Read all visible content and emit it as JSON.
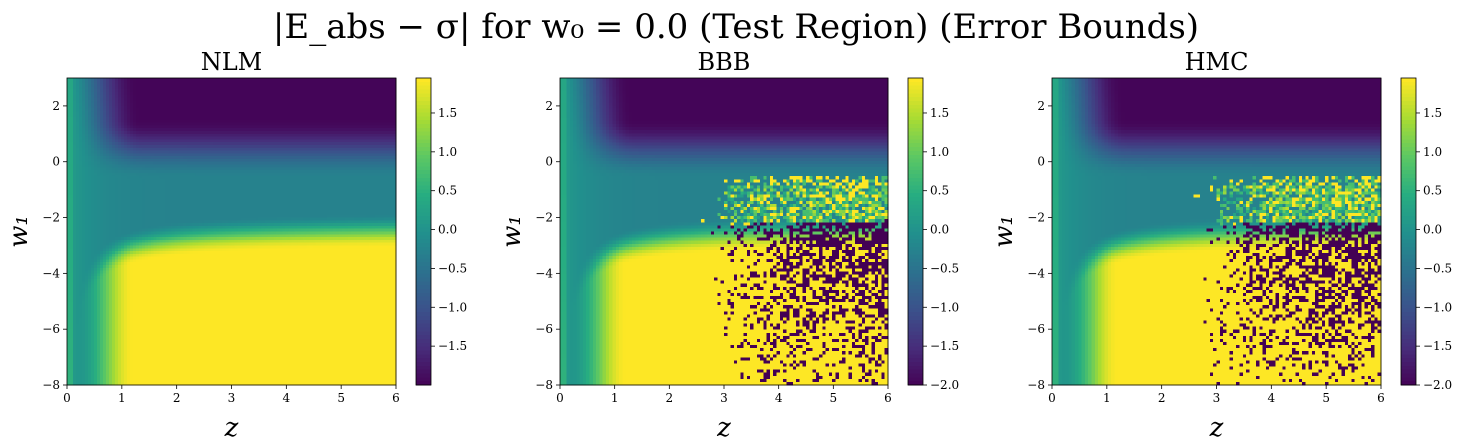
{
  "figure": {
    "suptitle": "|E_abs − σ| for w₀ = 0.0 (Test Region) (Error Bounds)"
  },
  "chart_data": [
    {
      "type": "heatmap",
      "title": "NLM",
      "xlabel": "z",
      "ylabel": "w₁",
      "xlim": [
        0,
        6
      ],
      "ylim": [
        -8,
        3
      ],
      "xticks": [
        0,
        1,
        2,
        3,
        4,
        5,
        6
      ],
      "yticks": [
        -8,
        -6,
        -4,
        -2,
        0,
        2
      ],
      "colormap": "viridis",
      "color_range": [
        -2.0,
        1.95
      ],
      "colorbar_ticks": [
        -1.5,
        -1.0,
        -0.5,
        0.0,
        0.5,
        1.0,
        1.5
      ],
      "noise": "none",
      "description_of_field": "smooth: high (yellow) for z>1 and w1<-2.5, low (purple) for w1>0, teal near z=0"
    },
    {
      "type": "heatmap",
      "title": "BBB",
      "xlabel": "z",
      "ylabel": "w₁",
      "xlim": [
        0,
        6
      ],
      "ylim": [
        -8,
        3
      ],
      "xticks": [
        0,
        1,
        2,
        3,
        4,
        5,
        6
      ],
      "yticks": [
        -8,
        -6,
        -4,
        -2,
        0,
        2
      ],
      "colormap": "viridis",
      "color_range": [
        -2.0,
        1.95
      ],
      "colorbar_ticks": [
        -2.0,
        -1.5,
        -1.0,
        -0.5,
        0.0,
        0.5,
        1.0,
        1.5
      ],
      "noise": "speckled yellow/purple pixels for z>2.5 and w1<-1"
    },
    {
      "type": "heatmap",
      "title": "HMC",
      "xlabel": "z",
      "ylabel": "w₁",
      "xlim": [
        0,
        6
      ],
      "ylim": [
        -8,
        3
      ],
      "xticks": [
        0,
        1,
        2,
        3,
        4,
        5,
        6
      ],
      "yticks": [
        -8,
        -6,
        -4,
        -2,
        0,
        2
      ],
      "colormap": "viridis",
      "color_range": [
        -2.0,
        1.95
      ],
      "colorbar_ticks": [
        -2.0,
        -1.5,
        -1.0,
        -0.5,
        0.0,
        0.5,
        1.0,
        1.5
      ],
      "noise": "speckled yellow/purple pixels for z>2.5 and w1<-1"
    }
  ]
}
